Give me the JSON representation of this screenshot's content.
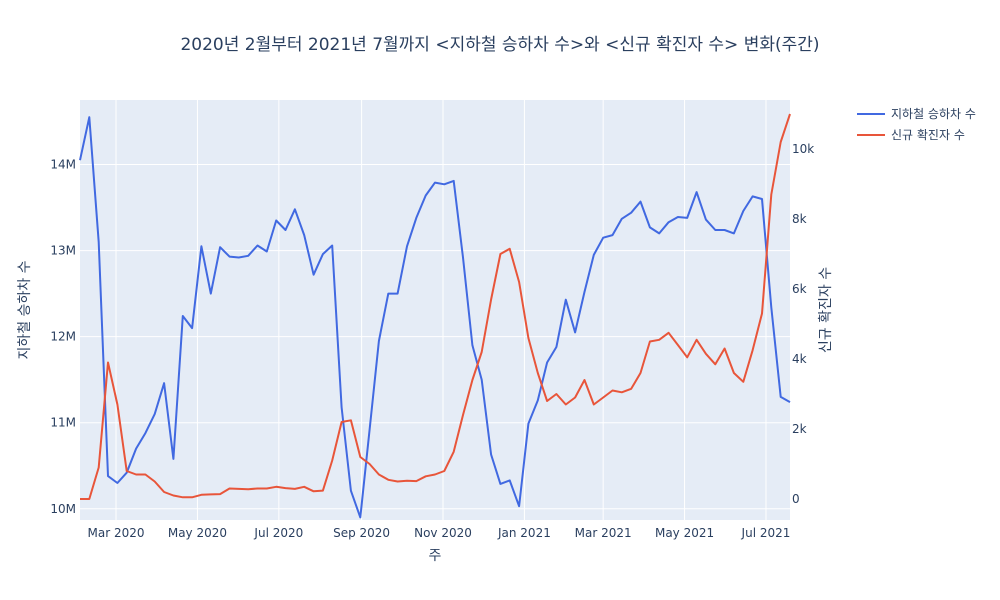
{
  "chart_data": {
    "type": "line",
    "title": "2020년 2월부터 2021년 7월까지 <지하철 승하차 수>와 <신규 확진자 수> 변화(주간)",
    "xlabel": "주",
    "ylabel_left": "지하철 승하차 수",
    "ylabel_right": "신규 확진자 수",
    "x": [
      "2020-02-03",
      "2020-02-10",
      "2020-02-17",
      "2020-02-24",
      "2020-03-02",
      "2020-03-09",
      "2020-03-16",
      "2020-03-23",
      "2020-03-30",
      "2020-04-06",
      "2020-04-13",
      "2020-04-20",
      "2020-04-27",
      "2020-05-04",
      "2020-05-11",
      "2020-05-18",
      "2020-05-25",
      "2020-06-01",
      "2020-06-08",
      "2020-06-15",
      "2020-06-22",
      "2020-06-29",
      "2020-07-06",
      "2020-07-13",
      "2020-07-20",
      "2020-07-27",
      "2020-08-03",
      "2020-08-10",
      "2020-08-17",
      "2020-08-24",
      "2020-08-31",
      "2020-09-07",
      "2020-09-14",
      "2020-09-21",
      "2020-09-28",
      "2020-10-05",
      "2020-10-12",
      "2020-10-19",
      "2020-10-26",
      "2020-11-02",
      "2020-11-09",
      "2020-11-16",
      "2020-11-23",
      "2020-11-30",
      "2020-12-07",
      "2020-12-14",
      "2020-12-21",
      "2020-12-28",
      "2021-01-04",
      "2021-01-11",
      "2021-01-18",
      "2021-01-25",
      "2021-02-01",
      "2021-02-08",
      "2021-02-15",
      "2021-02-22",
      "2021-03-01",
      "2021-03-08",
      "2021-03-15",
      "2021-03-22",
      "2021-03-29",
      "2021-04-05",
      "2021-04-12",
      "2021-04-19",
      "2021-04-26",
      "2021-05-03",
      "2021-05-10",
      "2021-05-17",
      "2021-05-24",
      "2021-05-31",
      "2021-06-07",
      "2021-06-14",
      "2021-06-21",
      "2021-06-28",
      "2021-07-05",
      "2021-07-12",
      "2021-07-19"
    ],
    "x_axis": {
      "range": [
        "2020-02-03",
        "2021-07-19"
      ],
      "ticks": [
        {
          "date": "2020-03-01",
          "label": "Mar 2020"
        },
        {
          "date": "2020-05-01",
          "label": "May 2020"
        },
        {
          "date": "2020-07-01",
          "label": "Jul 2020"
        },
        {
          "date": "2020-09-01",
          "label": "Sep 2020"
        },
        {
          "date": "2020-11-01",
          "label": "Nov 2020"
        },
        {
          "date": "2021-01-01",
          "label": "Jan 2021"
        },
        {
          "date": "2021-03-01",
          "label": "Mar 2021"
        },
        {
          "date": "2021-05-01",
          "label": "May 2021"
        },
        {
          "date": "2021-07-01",
          "label": "Jul 2021"
        }
      ]
    },
    "y_left": {
      "range": [
        9870000,
        14750000
      ],
      "ticks": [
        {
          "value": 10000000,
          "label": "10M"
        },
        {
          "value": 11000000,
          "label": "11M"
        },
        {
          "value": 12000000,
          "label": "12M"
        },
        {
          "value": 13000000,
          "label": "13M"
        },
        {
          "value": 14000000,
          "label": "14M"
        }
      ]
    },
    "y_right": {
      "range": [
        -600,
        11400
      ],
      "ticks": [
        {
          "value": 0,
          "label": "0"
        },
        {
          "value": 2000,
          "label": "2k"
        },
        {
          "value": 4000,
          "label": "4k"
        },
        {
          "value": 6000,
          "label": "6k"
        },
        {
          "value": 8000,
          "label": "8k"
        },
        {
          "value": 10000,
          "label": "10k"
        }
      ]
    },
    "grid": true,
    "legend_position": "top-right",
    "series": [
      {
        "name": "지하철 승하차 수",
        "axis": "left",
        "color": "#4169E1",
        "values": [
          14050000,
          14550000,
          13100000,
          10380000,
          10300000,
          10420000,
          10700000,
          10880000,
          11100000,
          11460000,
          10580000,
          12240000,
          12100000,
          13050000,
          12500000,
          13040000,
          12930000,
          12920000,
          12940000,
          13060000,
          12990000,
          13350000,
          13240000,
          13480000,
          13180000,
          12720000,
          12960000,
          13060000,
          11180000,
          10210000,
          9900000,
          10920000,
          11950000,
          12500000,
          12500000,
          13050000,
          13380000,
          13640000,
          13790000,
          13770000,
          13810000,
          12920000,
          11900000,
          11500000,
          10630000,
          10290000,
          10330000,
          10030000,
          10990000,
          11260000,
          11700000,
          11880000,
          12430000,
          12050000,
          12520000,
          12950000,
          13150000,
          13180000,
          13370000,
          13440000,
          13570000,
          13270000,
          13200000,
          13330000,
          13390000,
          13380000,
          13680000,
          13360000,
          13240000,
          13240000,
          13200000,
          13460000,
          13630000,
          13600000,
          12340000,
          11300000,
          11240000
        ]
      },
      {
        "name": "신규 확진자 수",
        "axis": "right",
        "color": "#E8553A",
        "values": [
          0,
          0,
          900,
          3900,
          2700,
          800,
          700,
          700,
          500,
          200,
          100,
          50,
          50,
          120,
          130,
          140,
          300,
          290,
          280,
          300,
          300,
          350,
          310,
          290,
          350,
          220,
          240,
          1100,
          2200,
          2250,
          1200,
          1000,
          700,
          550,
          500,
          520,
          510,
          650,
          700,
          800,
          1350,
          2400,
          3400,
          4200,
          5700,
          7000,
          7150,
          6200,
          4600,
          3600,
          2800,
          3000,
          2700,
          2900,
          3400,
          2700,
          2900,
          3100,
          3050,
          3150,
          3600,
          4500,
          4550,
          4750,
          4400,
          4050,
          4550,
          4150,
          3850,
          4300,
          3600,
          3350,
          4250,
          5300,
          8700,
          10200,
          11000
        ]
      }
    ]
  }
}
